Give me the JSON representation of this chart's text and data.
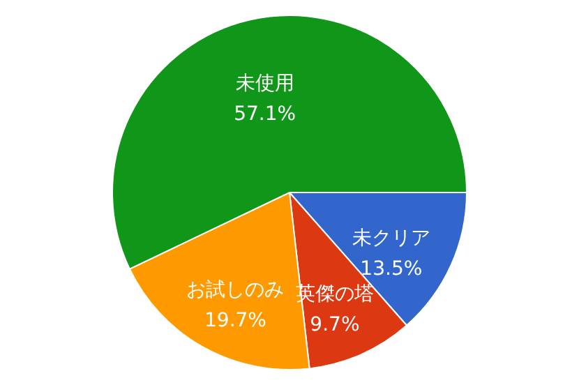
{
  "chart_data": {
    "type": "pie",
    "categories": [
      "未クリア",
      "英傑の塔",
      "お試しのみ",
      "未使用"
    ],
    "values": [
      13.5,
      9.7,
      19.7,
      57.1
    ],
    "colors": [
      "#3366cc",
      "#dc3912",
      "#ff9900",
      "#109618"
    ],
    "value_labels": [
      "13.5%",
      "9.7%",
      "19.7%",
      "57.1%"
    ],
    "legend": false
  }
}
